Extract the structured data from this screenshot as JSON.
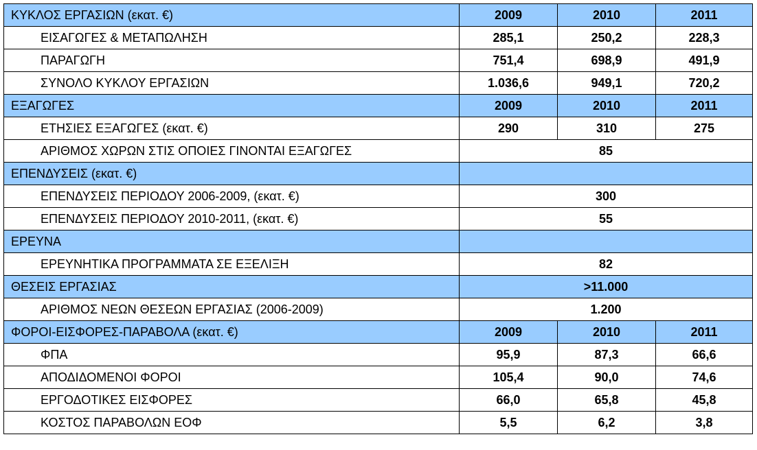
{
  "sections": [
    {
      "title": "ΚΥΚΛΟΣ ΕΡΓΑΣΙΩΝ (εκατ. €)",
      "header_values": [
        "2009",
        "2010",
        "2011"
      ],
      "rows": [
        {
          "label": "ΕΙΣΑΓΩΓΕΣ & ΜΕΤΑΠΩΛΗΣΗ",
          "values": [
            "285,1",
            "250,2",
            "228,3"
          ]
        },
        {
          "label": "ΠΑΡΑΓΩΓΗ",
          "values": [
            "751,4",
            "698,9",
            "491,9"
          ]
        },
        {
          "label": "ΣΥΝΟΛΟ ΚΥΚΛΟΥ ΕΡΓΑΣΙΩΝ",
          "values": [
            "1.036,6",
            "949,1",
            "720,2"
          ]
        }
      ]
    },
    {
      "title": "ΕΞΑΓΩΓΕΣ",
      "header_values": [
        "2009",
        "2010",
        "2011"
      ],
      "rows": [
        {
          "label": "ΕΤΗΣΙΕΣ ΕΞΑΓΩΓΕΣ (εκατ. €)",
          "values": [
            "290",
            "310",
            "275"
          ]
        },
        {
          "label": "ΑΡΙΘΜΟΣ ΧΩΡΩΝ ΣΤΙΣ ΟΠΟΙΕΣ ΓΙΝΟΝΤΑΙ ΕΞΑΓΩΓΕΣ",
          "value": "85"
        }
      ]
    },
    {
      "title": "ΕΠΕΝΔΥΣΕΙΣ (εκατ. €)",
      "header_value": "",
      "rows": [
        {
          "label": "ΕΠΕΝΔΥΣΕΙΣ ΠΕΡΙΟΔΟΥ 2006-2009, (εκατ. €)",
          "value": "300"
        },
        {
          "label": "ΕΠΕΝΔΥΣΕΙΣ ΠΕΡΙΟΔΟΥ 2010-2011, (εκατ. €)",
          "value": "55"
        }
      ]
    },
    {
      "title": "ΕΡΕΥΝΑ",
      "header_value": "",
      "rows": [
        {
          "label": "ΕΡΕΥΝΗΤΙΚΑ ΠΡΟΓΡΑΜΜΑΤΑ ΣΕ ΕΞΕΛΙΞΗ",
          "value": "82"
        }
      ]
    },
    {
      "title": "ΘΕΣΕΙΣ ΕΡΓΑΣΙΑΣ",
      "header_value": ">11.000",
      "rows": [
        {
          "label": "ΑΡΙΘΜΟΣ ΝΕΩΝ ΘΕΣΕΩΝ ΕΡΓΑΣΙΑΣ (2006-2009)",
          "value": "1.200"
        }
      ]
    },
    {
      "title": "ΦΟΡΟΙ-ΕΙΣΦΟΡΕΣ-ΠΑΡΑΒΟΛΑ  (εκατ. €)",
      "header_values": [
        "2009",
        "2010",
        "2011"
      ],
      "rows": [
        {
          "label": "ΦΠΑ",
          "values": [
            "95,9",
            "87,3",
            "66,6"
          ]
        },
        {
          "label": "ΑΠΟΔΙΔΟΜΕΝΟΙ ΦΟΡΟΙ",
          "values": [
            "105,4",
            "90,0",
            "74,6"
          ]
        },
        {
          "label": "ΕΡΓΟΔΟΤΙΚΕΣ ΕΙΣΦΟΡΕΣ",
          "values": [
            "66,0",
            "65,8",
            "45,8"
          ]
        },
        {
          "label": "ΚΟΣΤΟΣ ΠΑΡΑΒΟΛΩΝ ΕΟΦ",
          "values": [
            "5,5",
            "6,2",
            "3,8"
          ]
        }
      ]
    }
  ],
  "colors": {
    "header_background": "#99ccff",
    "border": "#000000"
  }
}
